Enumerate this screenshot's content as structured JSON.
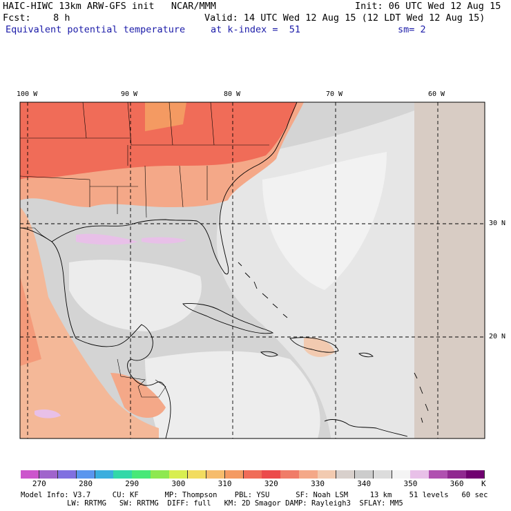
{
  "header": {
    "line1_left": "HAIC-HIWC 13km ARW-GFS init   NCAR/MMM",
    "line1_right": "Init: 06 UTC Wed 12 Aug 15",
    "line2_left": "Fcst:    8 h",
    "line2_right": "Valid: 14 UTC Wed 12 Aug 15 (12 LDT Wed 12 Aug 15)",
    "line3_field": "Equivalent potential temperature",
    "line3_level": "at k-index =  51",
    "line3_smooth": "sm= 2"
  },
  "map": {
    "lon_labels": [
      "100 W",
      "90 W",
      "80 W",
      "70 W",
      "60 W"
    ],
    "lat_labels": [
      "30 N",
      "20 N"
    ]
  },
  "colorbar": {
    "colors": [
      "#cc55cc",
      "#a064cc",
      "#8070e0",
      "#5a96ee",
      "#3aaede",
      "#32d8a8",
      "#48e878",
      "#8ee850",
      "#d8ee50",
      "#f2dc60",
      "#f6bc6c",
      "#f49a62",
      "#f06c58",
      "#ec4a4a",
      "#f07c68",
      "#f4a888",
      "#f2cab0",
      "#d8d0cc",
      "#cccccc",
      "#dcdcdc",
      "#f4f4f4",
      "#e8c0e8",
      "#b050b0",
      "#902890",
      "#700070"
    ],
    "labels": [
      "270",
      "280",
      "290",
      "300",
      "310",
      "320",
      "330",
      "340",
      "350",
      "360"
    ],
    "unit": "K"
  },
  "footer": {
    "line1": "Model Info: V3.7     CU: KF      MP: Thompson    PBL: YSU      SF: Noah LSM     13 km    51 levels   60 sec",
    "line2": "LW: RRTMG   SW: RRTMG  DIFF: full   KM: 2D Smagor DAMP: Rayleigh3  SFLAY: MM5"
  }
}
